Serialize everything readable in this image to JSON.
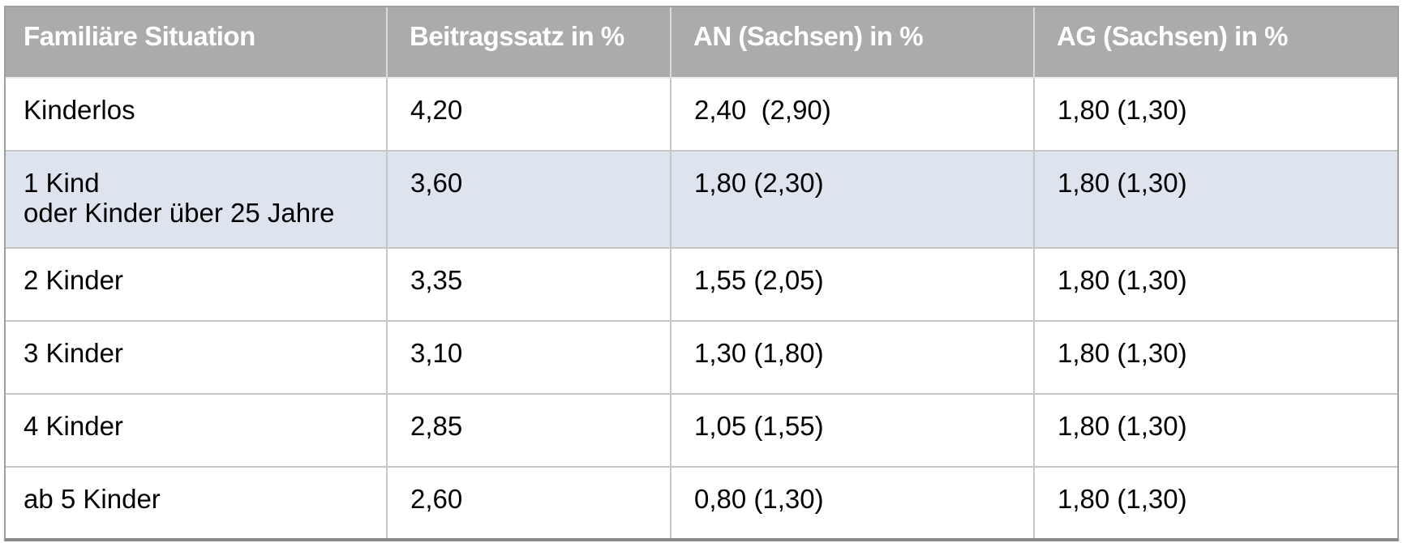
{
  "chart_data": {
    "type": "table",
    "columns": [
      "Familiäre Situation",
      "Beitragssatz in %",
      "AN (Sachsen) in %",
      "AG (Sachsen) in %"
    ],
    "rows": [
      {
        "cells": [
          "Kinderlos",
          "4,20",
          "2,40  (2,90)",
          "1,80 (1,30)"
        ],
        "highlighted": false
      },
      {
        "cells": [
          "1 Kind\noder Kinder über 25 Jahre",
          "3,60",
          "1,80 (2,30)",
          "1,80 (1,30)"
        ],
        "highlighted": true
      },
      {
        "cells": [
          "2 Kinder",
          "3,35",
          "1,55 (2,05)",
          "1,80 (1,30)"
        ],
        "highlighted": false
      },
      {
        "cells": [
          "3 Kinder",
          "3,10",
          "1,30 (1,80)",
          "1,80 (1,30)"
        ],
        "highlighted": false
      },
      {
        "cells": [
          "4 Kinder",
          "2,85",
          "1,05 (1,55)",
          "1,80 (1,30)"
        ],
        "highlighted": false
      },
      {
        "cells": [
          "ab 5 Kinder",
          "2,60",
          "0,80 (1,30)",
          "1,80 (1,30)"
        ],
        "highlighted": false
      }
    ],
    "layout_hints": {
      "header_position": "top",
      "highlighted_row_index": 1,
      "grid": true
    }
  },
  "colors": {
    "header_bg": "#ababab",
    "header_text": "#ffffff",
    "highlight_row_bg": "#dde4ee",
    "row_bg": "#ffffff",
    "body_text": "#000000",
    "grid_line": "#c6c6c6",
    "outer_border": "#9e9e9e"
  }
}
